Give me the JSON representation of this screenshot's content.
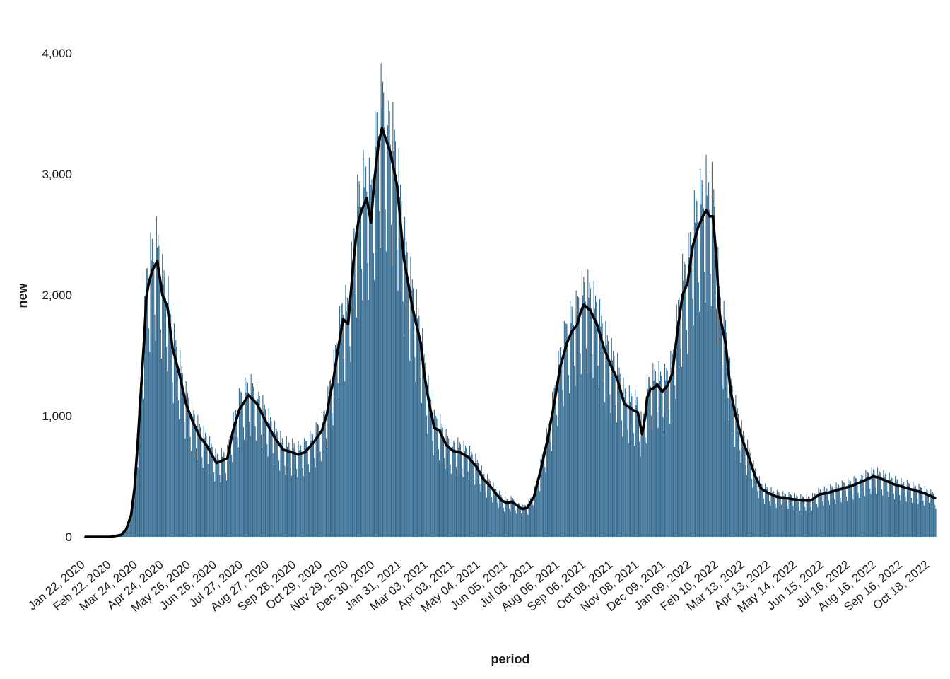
{
  "chart_data": {
    "type": "bar",
    "title": "",
    "xlabel": "period",
    "ylabel": "new",
    "ylim": [
      0,
      4150
    ],
    "y_ticks": [
      0,
      1000,
      2000,
      3000,
      4000
    ],
    "y_tick_labels": [
      "0",
      "1,000",
      "2,000",
      "3,000",
      "4,000"
    ],
    "x_range": [
      "2020-01-22",
      "2022-10-25"
    ],
    "x_ticks": [
      "2020-01-22",
      "2020-02-22",
      "2020-03-24",
      "2020-04-24",
      "2020-05-26",
      "2020-06-26",
      "2020-07-27",
      "2020-08-27",
      "2020-09-28",
      "2020-10-29",
      "2020-11-29",
      "2020-12-30",
      "2021-01-31",
      "2021-03-03",
      "2021-04-03",
      "2021-05-04",
      "2021-06-05",
      "2021-07-06",
      "2021-08-06",
      "2021-09-06",
      "2021-10-08",
      "2021-11-08",
      "2021-12-09",
      "2022-01-09",
      "2022-02-10",
      "2022-03-13",
      "2022-04-13",
      "2022-05-14",
      "2022-06-15",
      "2022-07-16",
      "2022-08-16",
      "2022-09-16",
      "2022-10-18"
    ],
    "x_tick_labels": [
      "Jan 22, 2020",
      "Feb 22, 2020",
      "Mar 24, 2020",
      "Apr 24, 2020",
      "May 26, 2020",
      "Jun 26, 2020",
      "Jul 27, 2020",
      "Aug 27, 2020",
      "Sep 28, 2020",
      "Oct 29, 2020",
      "Nov 29, 2020",
      "Dec 30, 2020",
      "Jan 31, 2021",
      "Mar 03, 2021",
      "Apr 03, 2021",
      "May 04, 2021",
      "Jun 05, 2021",
      "Jul 06, 2021",
      "Aug 06, 2021",
      "Sep 06, 2021",
      "Oct 08, 2021",
      "Nov 08, 2021",
      "Dec 09, 2021",
      "Jan 09, 2022",
      "Feb 10, 2022",
      "Mar 13, 2022",
      "Apr 13, 2022",
      "May 14, 2022",
      "Jun 15, 2022",
      "Jul 16, 2022",
      "Aug 16, 2022",
      "Sep 16, 2022",
      "Oct 18, 2022"
    ],
    "grid": false,
    "colors": {
      "bars": "#31688e",
      "line": "#000000"
    },
    "series": [
      {
        "kind": "bar",
        "description": "daily new values, shown as the smoothed trend multiplied by a weekly reporting pattern",
        "weekly_pattern": [
          1.17,
          1.05,
          1.12,
          1.1,
          1.02,
          0.82,
          0.72
        ]
      },
      {
        "kind": "line",
        "description": "7-day rolling average",
        "x": [
          "2020-01-22",
          "2020-02-20",
          "2020-03-04",
          "2020-03-10",
          "2020-03-16",
          "2020-03-20",
          "2020-03-24",
          "2020-03-28",
          "2020-04-01",
          "2020-04-03",
          "2020-04-06",
          "2020-04-10",
          "2020-04-16",
          "2020-04-22",
          "2020-04-28",
          "2020-05-04",
          "2020-05-12",
          "2020-05-20",
          "2020-05-28",
          "2020-06-05",
          "2020-06-13",
          "2020-06-18",
          "2020-06-25",
          "2020-07-02",
          "2020-07-08",
          "2020-07-14",
          "2020-07-22",
          "2020-08-02",
          "2020-08-12",
          "2020-08-22",
          "2020-09-02",
          "2020-09-12",
          "2020-09-22",
          "2020-09-30",
          "2020-10-08",
          "2020-10-18",
          "2020-10-28",
          "2020-11-03",
          "2020-11-06",
          "2020-11-10",
          "2020-11-16",
          "2020-11-22",
          "2020-11-28",
          "2020-12-04",
          "2020-12-08",
          "2020-12-10",
          "2020-12-14",
          "2020-12-20",
          "2020-12-25",
          "2020-12-29",
          "2021-01-03",
          "2021-01-07",
          "2021-01-11",
          "2021-01-17",
          "2021-01-25",
          "2021-02-02",
          "2021-02-12",
          "2021-02-22",
          "2021-02-26",
          "2021-03-04",
          "2021-03-10",
          "2021-03-16",
          "2021-03-24",
          "2021-04-01",
          "2021-04-09",
          "2021-04-19",
          "2021-04-29",
          "2021-05-07",
          "2021-05-15",
          "2021-05-23",
          "2021-05-29",
          "2021-06-04",
          "2021-06-10",
          "2021-06-16",
          "2021-06-22",
          "2021-06-28",
          "2021-07-06",
          "2021-07-14",
          "2021-07-22",
          "2021-07-30",
          "2021-08-06",
          "2021-08-14",
          "2021-08-20",
          "2021-08-26",
          "2021-08-30",
          "2021-09-03",
          "2021-09-11",
          "2021-09-19",
          "2021-09-27",
          "2021-10-05",
          "2021-10-13",
          "2021-10-21",
          "2021-10-31",
          "2021-11-06",
          "2021-11-11",
          "2021-11-15",
          "2021-11-17",
          "2021-11-19",
          "2021-11-21",
          "2021-11-25",
          "2021-11-29",
          "2021-12-05",
          "2021-12-11",
          "2021-12-17",
          "2021-12-23",
          "2021-12-29",
          "2022-01-04",
          "2022-01-10",
          "2022-01-16",
          "2022-01-22",
          "2022-01-26",
          "2022-01-30",
          "2022-02-03",
          "2022-02-06",
          "2022-02-08",
          "2022-02-10",
          "2022-02-12",
          "2022-02-18",
          "2022-02-24",
          "2022-03-02",
          "2022-03-10",
          "2022-03-18",
          "2022-03-24",
          "2022-04-01",
          "2022-04-10",
          "2022-04-20",
          "2022-04-30",
          "2022-05-10",
          "2022-05-20",
          "2022-05-30",
          "2022-06-09",
          "2022-06-17",
          "2022-06-27",
          "2022-07-07",
          "2022-07-17",
          "2022-07-27",
          "2022-08-06",
          "2022-08-12",
          "2022-08-18",
          "2022-08-28",
          "2022-09-07",
          "2022-09-17",
          "2022-09-27",
          "2022-10-07",
          "2022-10-15",
          "2022-10-24"
        ],
        "values": [
          0,
          0,
          15,
          60,
          180,
          400,
          800,
          1250,
          1700,
          1980,
          2100,
          2200,
          2280,
          2000,
          1900,
          1560,
          1350,
          1100,
          950,
          830,
          760,
          700,
          610,
          630,
          650,
          860,
          1050,
          1170,
          1100,
          960,
          820,
          720,
          700,
          680,
          700,
          780,
          880,
          1020,
          1150,
          1280,
          1550,
          1800,
          1760,
          2250,
          2520,
          2600,
          2700,
          2800,
          2600,
          2950,
          3250,
          3380,
          3300,
          3180,
          2900,
          2300,
          1900,
          1600,
          1350,
          1100,
          900,
          880,
          760,
          710,
          700,
          660,
          580,
          480,
          420,
          350,
          300,
          280,
          290,
          260,
          230,
          240,
          330,
          550,
          800,
          1100,
          1400,
          1600,
          1700,
          1750,
          1850,
          1920,
          1870,
          1750,
          1560,
          1420,
          1300,
          1100,
          1050,
          1030,
          850,
          1000,
          1150,
          1180,
          1220,
          1230,
          1260,
          1200,
          1250,
          1350,
          1700,
          2000,
          2100,
          2400,
          2550,
          2650,
          2700,
          2650,
          2650,
          2400,
          2200,
          1900,
          1800,
          1600,
          1200,
          1000,
          800,
          650,
          520,
          400,
          360,
          330,
          320,
          310,
          300,
          300,
          350,
          360,
          380,
          400,
          420,
          450,
          480,
          500,
          490,
          460,
          430,
          410,
          390,
          370,
          350,
          320
        ]
      }
    ]
  }
}
